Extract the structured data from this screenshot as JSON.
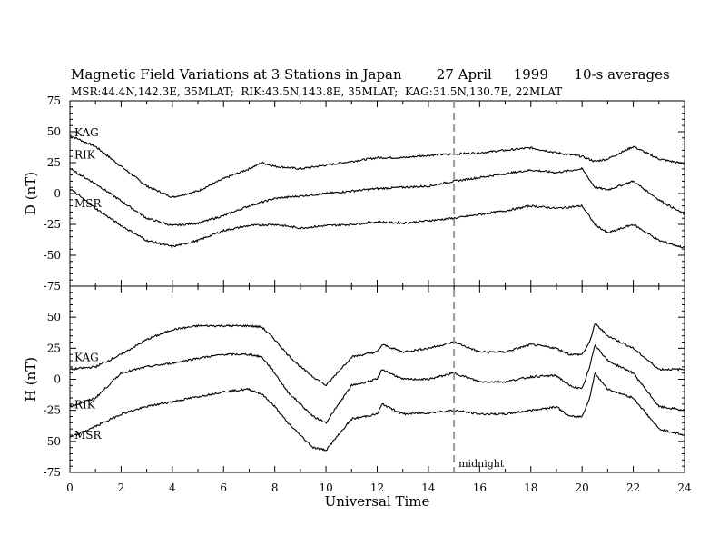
{
  "header": {
    "title": "Magnetic Field Variations at 3 Stations in Japan        27 April     1999      10-s averages",
    "subtitle": "MSR:44.4N,142.3E, 35MLAT;  RIK:43.5N,143.8E, 35MLAT;  KAG:31.5N,130.7E, 22MLAT"
  },
  "chart_data": [
    {
      "type": "line",
      "panel": "D",
      "ylabel": "D (nT)",
      "ylim": [
        -75,
        75
      ],
      "yticks": [
        -75,
        -50,
        -25,
        0,
        25,
        50,
        75
      ],
      "xlim": [
        0,
        24
      ],
      "grid": false,
      "series": [
        {
          "name": "KAG",
          "x": [
            0,
            1,
            2,
            3,
            4,
            5,
            6,
            7,
            7.5,
            8,
            9,
            10,
            11,
            12,
            13,
            14,
            15,
            16,
            17,
            18,
            19,
            20,
            20.5,
            21,
            22,
            23,
            24
          ],
          "y": [
            47,
            38,
            22,
            6,
            -3,
            2,
            12,
            20,
            25,
            22,
            20,
            23,
            26,
            29,
            29,
            31,
            32,
            33,
            35,
            37,
            33,
            30,
            26,
            28,
            38,
            28,
            24
          ]
        },
        {
          "name": "RIK",
          "x": [
            0,
            1,
            2,
            3,
            4,
            5,
            6,
            7,
            8,
            9,
            10,
            11,
            12,
            13,
            14,
            15,
            16,
            17,
            18,
            19,
            20,
            20.5,
            21,
            22,
            23,
            24
          ],
          "y": [
            20,
            8,
            -6,
            -20,
            -26,
            -24,
            -18,
            -10,
            -4,
            -2,
            0,
            2,
            4,
            5,
            6,
            10,
            13,
            16,
            19,
            17,
            20,
            5,
            3,
            10,
            -5,
            -17
          ]
        },
        {
          "name": "MSR",
          "x": [
            0,
            1,
            2,
            3,
            4,
            5,
            6,
            7,
            8,
            9,
            10,
            11,
            12,
            13,
            14,
            15,
            16,
            17,
            18,
            19,
            20,
            20.5,
            21,
            22,
            23,
            24
          ],
          "y": [
            4,
            -12,
            -26,
            -38,
            -43,
            -38,
            -30,
            -26,
            -25,
            -28,
            -26,
            -25,
            -23,
            -24,
            -22,
            -20,
            -17,
            -14,
            -10,
            -12,
            -10,
            -25,
            -32,
            -25,
            -38,
            -44
          ]
        }
      ]
    },
    {
      "type": "line",
      "panel": "H",
      "ylabel": "H (nT)",
      "xlabel": "Universal Time",
      "ylim": [
        -75,
        75
      ],
      "yticks": [
        -75,
        -50,
        -25,
        0,
        25,
        50,
        75
      ],
      "xlim": [
        0,
        24
      ],
      "xticks": [
        0,
        2,
        4,
        6,
        8,
        10,
        12,
        14,
        16,
        18,
        20,
        22,
        24
      ],
      "grid": false,
      "series": [
        {
          "name": "KAG",
          "x": [
            0,
            1,
            2,
            3,
            4,
            5,
            6,
            7,
            7.5,
            8,
            8.5,
            9,
            9.5,
            10,
            11,
            12,
            12.2,
            13,
            14,
            15,
            16,
            17,
            18,
            19,
            19.5,
            20,
            20.3,
            20.5,
            21,
            22,
            23,
            24
          ],
          "y": [
            8,
            10,
            20,
            32,
            40,
            43,
            43,
            43,
            42,
            32,
            20,
            10,
            2,
            -5,
            18,
            22,
            28,
            22,
            25,
            30,
            22,
            22,
            28,
            25,
            20,
            20,
            30,
            45,
            35,
            25,
            8,
            8
          ]
        },
        {
          "name": "RIK",
          "x": [
            0,
            1,
            2,
            3,
            4,
            5,
            6,
            7,
            7.5,
            8,
            8.5,
            9,
            9.5,
            10,
            11,
            12,
            12.2,
            13,
            14,
            15,
            16,
            17,
            18,
            19,
            19.5,
            20,
            20.3,
            20.5,
            21,
            22,
            23,
            24
          ],
          "y": [
            -22,
            -15,
            5,
            10,
            13,
            17,
            20,
            20,
            18,
            5,
            -10,
            -20,
            -30,
            -35,
            -5,
            0,
            8,
            0,
            0,
            5,
            -2,
            -2,
            2,
            3,
            -5,
            -8,
            10,
            28,
            15,
            5,
            -22,
            -25
          ]
        },
        {
          "name": "MSR",
          "x": [
            0,
            1,
            2,
            3,
            4,
            5,
            6,
            7,
            7.5,
            8,
            8.5,
            9,
            9.5,
            10,
            11,
            12,
            12.2,
            13,
            14,
            15,
            16,
            17,
            18,
            19,
            19.5,
            20,
            20.3,
            20.5,
            21,
            22,
            23,
            24
          ],
          "y": [
            -47,
            -38,
            -28,
            -22,
            -18,
            -14,
            -10,
            -8,
            -12,
            -22,
            -35,
            -45,
            -55,
            -57,
            -32,
            -28,
            -20,
            -28,
            -27,
            -25,
            -28,
            -28,
            -25,
            -22,
            -30,
            -30,
            -15,
            5,
            -8,
            -15,
            -40,
            -45
          ]
        }
      ]
    }
  ],
  "annotations": {
    "midnight_label": "midnight",
    "midnight_ut": 15
  },
  "colors": {
    "line": "#000000",
    "midnight_line": "#9a9a9a"
  }
}
